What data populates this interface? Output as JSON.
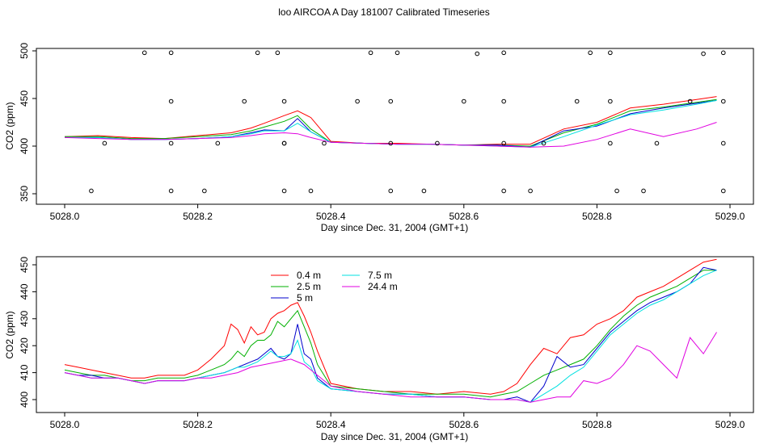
{
  "title": "loo AIRCOA A  Day 181007  Calibrated Timeseries",
  "chart_data": [
    {
      "type": "line",
      "xlabel": "Day since Dec. 31, 2004 (GMT+1)",
      "ylabel": "CO2 (ppm)",
      "xlim": [
        5028.0,
        5029.0
      ],
      "ylim": [
        350,
        500
      ],
      "x_ticks": [
        "5028.0",
        "5028.2",
        "5028.4",
        "5028.6",
        "5028.8",
        "5029.0"
      ],
      "y_ticks": [
        "350",
        "400",
        "450",
        "500"
      ],
      "legend": "none",
      "series": [
        {
          "color": "#ff0000",
          "x": [
            5028.0,
            5028.05,
            5028.1,
            5028.15,
            5028.2,
            5028.25,
            5028.28,
            5028.3,
            5028.33,
            5028.35,
            5028.37,
            5028.4,
            5028.45,
            5028.5,
            5028.55,
            5028.6,
            5028.65,
            5028.7,
            5028.75,
            5028.8,
            5028.85,
            5028.9,
            5028.95,
            5028.98
          ],
          "y": [
            410,
            411,
            409,
            408,
            411,
            414,
            419,
            424,
            432,
            437,
            430,
            405,
            403,
            403,
            402,
            401,
            402,
            402,
            418,
            425,
            440,
            444,
            449,
            452
          ]
        },
        {
          "color": "#00b000",
          "x": [
            5028.0,
            5028.05,
            5028.1,
            5028.15,
            5028.2,
            5028.25,
            5028.28,
            5028.3,
            5028.33,
            5028.35,
            5028.37,
            5028.4,
            5028.45,
            5028.5,
            5028.55,
            5028.6,
            5028.65,
            5028.7,
            5028.75,
            5028.8,
            5028.85,
            5028.9,
            5028.95,
            5028.98
          ],
          "y": [
            410,
            410,
            408,
            408,
            410,
            412,
            416,
            420,
            426,
            432,
            418,
            404,
            403,
            402,
            402,
            401,
            401,
            400,
            414,
            423,
            437,
            441,
            446,
            449
          ]
        },
        {
          "color": "#0000cc",
          "x": [
            5028.0,
            5028.05,
            5028.1,
            5028.15,
            5028.2,
            5028.25,
            5028.28,
            5028.3,
            5028.33,
            5028.35,
            5028.37,
            5028.4,
            5028.45,
            5028.5,
            5028.55,
            5028.6,
            5028.65,
            5028.7,
            5028.75,
            5028.8,
            5028.85,
            5028.9,
            5028.95,
            5028.98
          ],
          "y": [
            409,
            409,
            407,
            407,
            408,
            410,
            414,
            417,
            416,
            429,
            415,
            404,
            403,
            402,
            402,
            401,
            401,
            399,
            416,
            421,
            434,
            440,
            445,
            448
          ]
        },
        {
          "color": "#00e0e0",
          "x": [
            5028.0,
            5028.05,
            5028.1,
            5028.15,
            5028.2,
            5028.25,
            5028.28,
            5028.3,
            5028.33,
            5028.35,
            5028.37,
            5028.4,
            5028.45,
            5028.5,
            5028.55,
            5028.6,
            5028.65,
            5028.7,
            5028.75,
            5028.8,
            5028.85,
            5028.9,
            5028.95,
            5028.98
          ],
          "y": [
            409,
            409,
            407,
            407,
            408,
            410,
            413,
            416,
            416,
            424,
            415,
            404,
            403,
            402,
            402,
            401,
            400,
            399,
            410,
            422,
            433,
            438,
            444,
            448
          ]
        },
        {
          "color": "#e000e0",
          "x": [
            5028.0,
            5028.05,
            5028.1,
            5028.15,
            5028.2,
            5028.25,
            5028.28,
            5028.3,
            5028.33,
            5028.35,
            5028.37,
            5028.4,
            5028.45,
            5028.5,
            5028.55,
            5028.6,
            5028.65,
            5028.7,
            5028.75,
            5028.8,
            5028.85,
            5028.9,
            5028.95,
            5028.98
          ],
          "y": [
            409,
            408,
            407,
            407,
            408,
            409,
            411,
            413,
            414,
            413,
            409,
            404,
            403,
            402,
            402,
            401,
            400,
            399,
            400,
            407,
            418,
            410,
            418,
            425
          ]
        },
        {
          "color": "#000000",
          "kind": "points",
          "x": [
            5028.04,
            5028.06,
            5028.12,
            5028.16,
            5028.16,
            5028.16,
            5028.16,
            5028.21,
            5028.23,
            5028.27,
            5028.29,
            5028.32,
            5028.33,
            5028.33,
            5028.33,
            5028.33,
            5028.37,
            5028.39,
            5028.44,
            5028.46,
            5028.49,
            5028.49,
            5028.49,
            5028.5,
            5028.54,
            5028.56,
            5028.6,
            5028.62,
            5028.66,
            5028.66,
            5028.66,
            5028.66,
            5028.7,
            5028.72,
            5028.77,
            5028.79,
            5028.82,
            5028.82,
            5028.82,
            5028.83,
            5028.87,
            5028.89,
            5028.94,
            5028.96,
            5028.99,
            5028.99,
            5028.99,
            5028.99
          ],
          "y": [
            353,
            403,
            498,
            353,
            403,
            447,
            498,
            353,
            403,
            447,
            498,
            498,
            447,
            403,
            353,
            403,
            353,
            403,
            447,
            498,
            447,
            353,
            403,
            498,
            353,
            403,
            447,
            497,
            498,
            447,
            403,
            353,
            353,
            403,
            447,
            498,
            498,
            447,
            403,
            353,
            353,
            403,
            447,
            497,
            498,
            447,
            403,
            353
          ]
        }
      ]
    },
    {
      "type": "line",
      "xlabel": "Day since Dec. 31, 2004 (GMT+1)",
      "ylabel": "CO2 (ppm)",
      "xlim": [
        5028.0,
        5029.0
      ],
      "ylim": [
        400,
        450
      ],
      "x_ticks": [
        "5028.0",
        "5028.2",
        "5028.4",
        "5028.6",
        "5028.8",
        "5029.0"
      ],
      "y_ticks": [
        "400",
        "410",
        "420",
        "430",
        "440",
        "450"
      ],
      "legend": "top-left",
      "series": [
        {
          "name": "0.4 m",
          "color": "#ff0000",
          "x": [
            5028.0,
            5028.02,
            5028.04,
            5028.06,
            5028.08,
            5028.1,
            5028.12,
            5028.14,
            5028.16,
            5028.18,
            5028.2,
            5028.22,
            5028.24,
            5028.25,
            5028.26,
            5028.27,
            5028.28,
            5028.29,
            5028.3,
            5028.31,
            5028.32,
            5028.33,
            5028.34,
            5028.35,
            5028.36,
            5028.37,
            5028.38,
            5028.4,
            5028.44,
            5028.48,
            5028.52,
            5028.56,
            5028.6,
            5028.64,
            5028.66,
            5028.68,
            5028.7,
            5028.72,
            5028.74,
            5028.76,
            5028.78,
            5028.8,
            5028.82,
            5028.84,
            5028.86,
            5028.88,
            5028.9,
            5028.92,
            5028.94,
            5028.96,
            5028.98
          ],
          "y": [
            413,
            412,
            411,
            410,
            409,
            408,
            408,
            409,
            409,
            409,
            411,
            415,
            420,
            428,
            426,
            421,
            427,
            424,
            425,
            430,
            432,
            433,
            435,
            436,
            431,
            425,
            418,
            406,
            404,
            403,
            403,
            402,
            403,
            402,
            403,
            406,
            413,
            419,
            417,
            423,
            424,
            428,
            430,
            433,
            438,
            440,
            442,
            445,
            448,
            451,
            452
          ]
        },
        {
          "name": "2.5 m",
          "color": "#00b000",
          "x": [
            5028.0,
            5028.02,
            5028.04,
            5028.06,
            5028.08,
            5028.1,
            5028.12,
            5028.14,
            5028.16,
            5028.18,
            5028.2,
            5028.22,
            5028.24,
            5028.25,
            5028.26,
            5028.27,
            5028.28,
            5028.29,
            5028.3,
            5028.31,
            5028.32,
            5028.33,
            5028.34,
            5028.35,
            5028.36,
            5028.37,
            5028.38,
            5028.4,
            5028.44,
            5028.48,
            5028.52,
            5028.56,
            5028.6,
            5028.64,
            5028.66,
            5028.68,
            5028.7,
            5028.72,
            5028.74,
            5028.76,
            5028.78,
            5028.8,
            5028.82,
            5028.84,
            5028.86,
            5028.88,
            5028.9,
            5028.92,
            5028.94,
            5028.96,
            5028.98
          ],
          "y": [
            411,
            410,
            409,
            409,
            408,
            407,
            407,
            408,
            408,
            408,
            409,
            411,
            413,
            415,
            418,
            416,
            420,
            422,
            422,
            424,
            429,
            427,
            430,
            433,
            427,
            421,
            413,
            405,
            404,
            403,
            402,
            402,
            402,
            401,
            402,
            403,
            406,
            409,
            411,
            413,
            415,
            420,
            426,
            431,
            435,
            438,
            440,
            442,
            445,
            448,
            448
          ]
        },
        {
          "name": "5 m",
          "color": "#0000cc",
          "x": [
            5028.0,
            5028.02,
            5028.04,
            5028.06,
            5028.08,
            5028.1,
            5028.12,
            5028.14,
            5028.16,
            5028.18,
            5028.2,
            5028.22,
            5028.24,
            5028.25,
            5028.26,
            5028.27,
            5028.28,
            5028.29,
            5028.3,
            5028.31,
            5028.32,
            5028.33,
            5028.34,
            5028.35,
            5028.36,
            5028.37,
            5028.38,
            5028.4,
            5028.44,
            5028.48,
            5028.52,
            5028.56,
            5028.6,
            5028.64,
            5028.66,
            5028.68,
            5028.7,
            5028.72,
            5028.74,
            5028.76,
            5028.78,
            5028.8,
            5028.82,
            5028.84,
            5028.86,
            5028.88,
            5028.9,
            5028.92,
            5028.94,
            5028.96,
            5028.98
          ],
          "y": [
            410,
            409,
            409,
            408,
            408,
            407,
            406,
            407,
            407,
            407,
            408,
            409,
            410,
            411,
            412,
            413,
            414,
            415,
            417,
            419,
            416,
            415,
            417,
            428,
            417,
            415,
            408,
            404,
            403,
            402,
            402,
            401,
            401,
            400,
            400,
            401,
            399,
            405,
            416,
            412,
            413,
            419,
            425,
            429,
            433,
            436,
            438,
            440,
            443,
            449,
            448
          ]
        },
        {
          "name": "7.5 m",
          "color": "#00e0e0",
          "x": [
            5028.0,
            5028.02,
            5028.04,
            5028.06,
            5028.08,
            5028.1,
            5028.12,
            5028.14,
            5028.16,
            5028.18,
            5028.2,
            5028.22,
            5028.24,
            5028.25,
            5028.26,
            5028.27,
            5028.28,
            5028.29,
            5028.3,
            5028.31,
            5028.32,
            5028.33,
            5028.34,
            5028.35,
            5028.36,
            5028.37,
            5028.38,
            5028.4,
            5028.44,
            5028.48,
            5028.52,
            5028.56,
            5028.6,
            5028.64,
            5028.66,
            5028.68,
            5028.7,
            5028.72,
            5028.74,
            5028.76,
            5028.78,
            5028.8,
            5028.82,
            5028.84,
            5028.86,
            5028.88,
            5028.9,
            5028.92,
            5028.94,
            5028.96,
            5028.98
          ],
          "y": [
            410,
            409,
            408,
            408,
            408,
            407,
            406,
            407,
            407,
            407,
            408,
            409,
            410,
            411,
            412,
            412,
            413,
            414,
            416,
            418,
            416,
            416,
            417,
            422,
            414,
            412,
            407,
            404,
            403,
            402,
            402,
            401,
            401,
            400,
            400,
            400,
            399,
            402,
            405,
            409,
            412,
            418,
            424,
            428,
            432,
            435,
            437,
            440,
            443,
            446,
            448
          ]
        },
        {
          "name": "24.4 m",
          "color": "#e000e0",
          "x": [
            5028.0,
            5028.02,
            5028.04,
            5028.06,
            5028.08,
            5028.1,
            5028.12,
            5028.14,
            5028.16,
            5028.18,
            5028.2,
            5028.22,
            5028.24,
            5028.26,
            5028.28,
            5028.3,
            5028.32,
            5028.34,
            5028.36,
            5028.38,
            5028.4,
            5028.44,
            5028.48,
            5028.52,
            5028.56,
            5028.6,
            5028.64,
            5028.66,
            5028.68,
            5028.7,
            5028.72,
            5028.74,
            5028.76,
            5028.78,
            5028.8,
            5028.82,
            5028.84,
            5028.86,
            5028.88,
            5028.9,
            5028.92,
            5028.94,
            5028.96,
            5028.98
          ],
          "y": [
            410,
            409,
            408,
            408,
            408,
            407,
            406,
            407,
            407,
            407,
            408,
            408,
            409,
            410,
            412,
            413,
            414,
            415,
            413,
            409,
            405,
            403,
            402,
            401,
            401,
            401,
            400,
            400,
            400,
            399,
            400,
            401,
            401,
            407,
            406,
            408,
            413,
            420,
            418,
            413,
            408,
            423,
            417,
            425
          ]
        }
      ]
    }
  ]
}
